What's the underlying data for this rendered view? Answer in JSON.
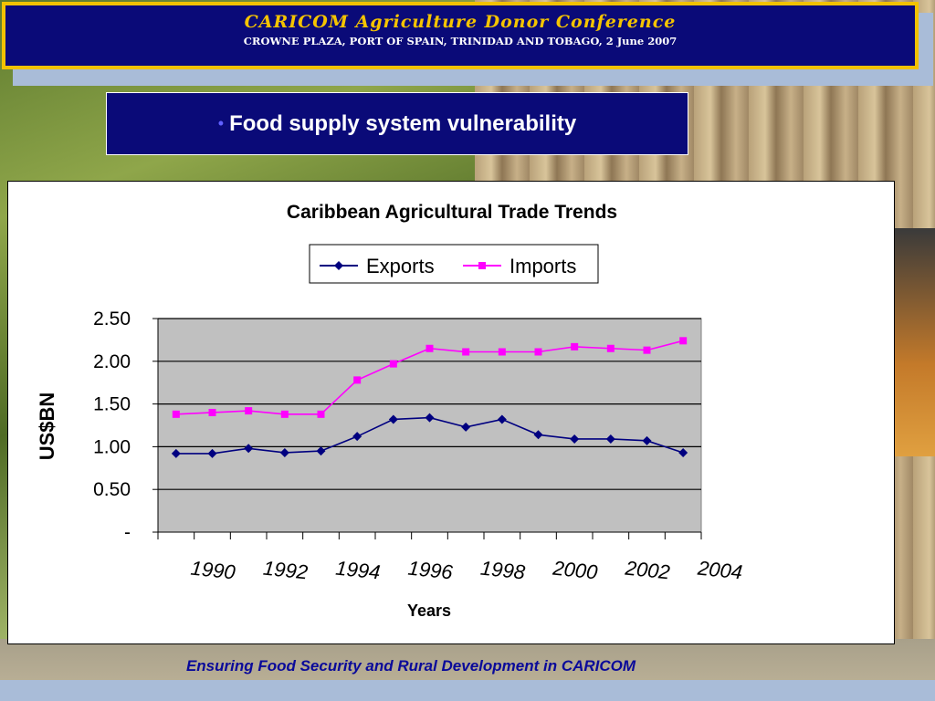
{
  "header": {
    "title": "CARICOM Agriculture Donor Conference",
    "subtitle": "CROWNE PLAZA, PORT OF SPAIN, TRINIDAD AND TOBAGO, 2 June 2007"
  },
  "slide": {
    "bullet": "•",
    "title": "Food supply system vulnerability"
  },
  "footer": {
    "text": "Ensuring Food Security and Rural Development in CARICOM"
  },
  "colors": {
    "exports": "#000080",
    "imports": "#ff00ff",
    "plot_bg": "#c0c0c0",
    "header_bg": "#0a0a78",
    "header_border": "#f2c200"
  },
  "chart_data": {
    "type": "line",
    "title": "Caribbean Agricultural Trade Trends",
    "xlabel": "Years",
    "ylabel": "US$BN",
    "x": [
      1989,
      1990,
      1991,
      1992,
      1993,
      1994,
      1995,
      1996,
      1997,
      1998,
      1999,
      2000,
      2001,
      2002,
      2003
    ],
    "x_tick_labels": [
      "1990",
      "1992",
      "1994",
      "1996",
      "1998",
      "2000",
      "2002",
      "2004"
    ],
    "y_tick_labels": [
      "-",
      "0.50",
      "1.00",
      "1.50",
      "2.00",
      "2.50"
    ],
    "ylim": [
      0,
      2.5
    ],
    "grid": true,
    "legend": "top",
    "series": [
      {
        "name": "Exports",
        "values": [
          0.92,
          0.92,
          0.98,
          0.93,
          0.95,
          1.12,
          1.32,
          1.34,
          1.23,
          1.32,
          1.14,
          1.09,
          1.09,
          1.07,
          0.93
        ]
      },
      {
        "name": "Imports",
        "values": [
          1.38,
          1.4,
          1.42,
          1.38,
          1.38,
          1.78,
          1.97,
          2.15,
          2.11,
          2.11,
          2.11,
          2.17,
          2.15,
          2.13,
          2.24
        ]
      }
    ]
  }
}
